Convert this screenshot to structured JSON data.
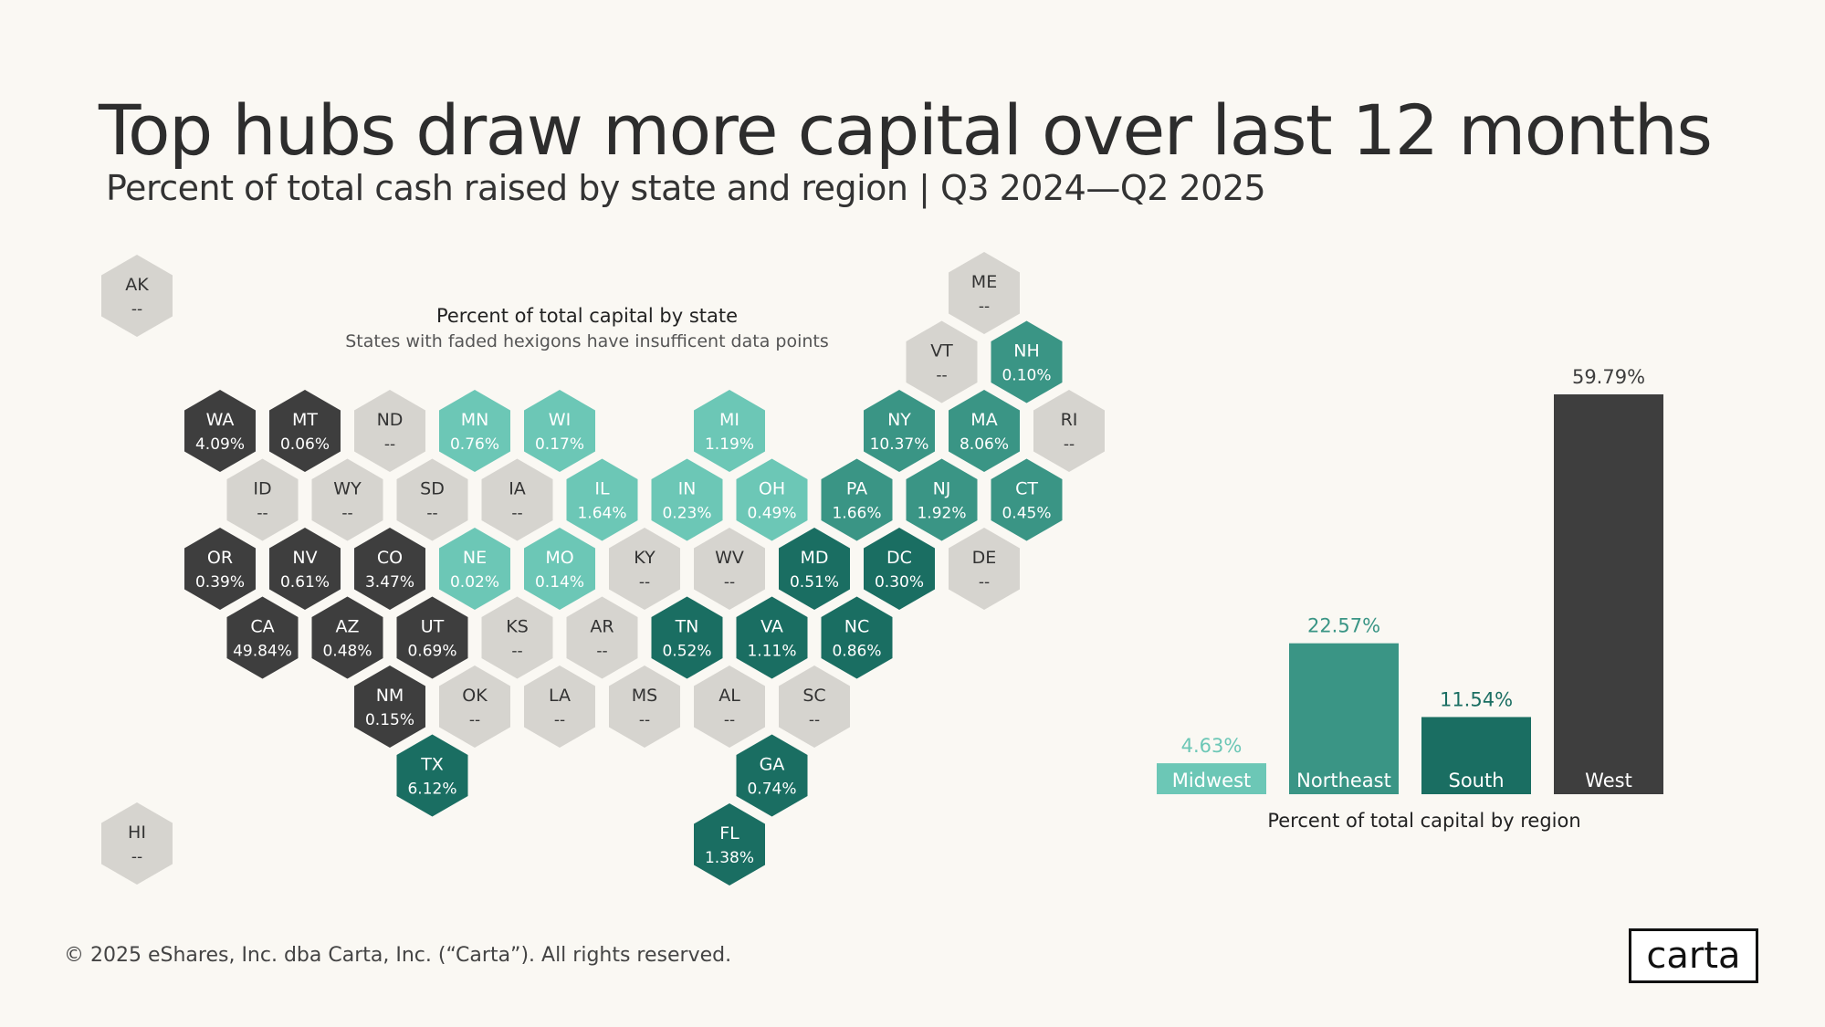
{
  "title": "Top hubs draw more capital over last 12 months",
  "subtitle": "Percent of total cash raised by state and region | Q3 2024—Q2 2025",
  "footer": "© 2025 eShares, Inc. dba Carta, Inc. (“Carta”). All rights reserved.",
  "logo": "carta",
  "colors": {
    "West": "#3e3e3e",
    "Midwest": "#6cc7b6",
    "Northeast": "#3a9585",
    "South": "#1a6e62",
    "insufficient": "#d6d4cf"
  },
  "chart_data": [
    {
      "type": "hexbin map",
      "title": "Percent of total capital by state",
      "subtitle": "States with faded hexigons have insufficent data points",
      "states": [
        {
          "state": "AK",
          "value": "--",
          "region": "insufficient"
        },
        {
          "state": "HI",
          "value": "--",
          "region": "insufficient"
        },
        {
          "state": "ME",
          "value": "--",
          "region": "insufficient"
        },
        {
          "state": "VT",
          "value": "--",
          "region": "insufficient"
        },
        {
          "state": "NH",
          "value": "0.10%",
          "region": "Northeast"
        },
        {
          "state": "WA",
          "value": "4.09%",
          "region": "West"
        },
        {
          "state": "MT",
          "value": "0.06%",
          "region": "West"
        },
        {
          "state": "ND",
          "value": "--",
          "region": "insufficient"
        },
        {
          "state": "MN",
          "value": "0.76%",
          "region": "Midwest"
        },
        {
          "state": "WI",
          "value": "0.17%",
          "region": "Midwest"
        },
        {
          "state": "MI",
          "value": "1.19%",
          "region": "Midwest"
        },
        {
          "state": "NY",
          "value": "10.37%",
          "region": "Northeast"
        },
        {
          "state": "MA",
          "value": "8.06%",
          "region": "Northeast"
        },
        {
          "state": "RI",
          "value": "--",
          "region": "insufficient"
        },
        {
          "state": "ID",
          "value": "--",
          "region": "insufficient"
        },
        {
          "state": "WY",
          "value": "--",
          "region": "insufficient"
        },
        {
          "state": "SD",
          "value": "--",
          "region": "insufficient"
        },
        {
          "state": "IA",
          "value": "--",
          "region": "insufficient"
        },
        {
          "state": "IL",
          "value": "1.64%",
          "region": "Midwest"
        },
        {
          "state": "IN",
          "value": "0.23%",
          "region": "Midwest"
        },
        {
          "state": "OH",
          "value": "0.49%",
          "region": "Midwest"
        },
        {
          "state": "PA",
          "value": "1.66%",
          "region": "Northeast"
        },
        {
          "state": "NJ",
          "value": "1.92%",
          "region": "Northeast"
        },
        {
          "state": "CT",
          "value": "0.45%",
          "region": "Northeast"
        },
        {
          "state": "OR",
          "value": "0.39%",
          "region": "West"
        },
        {
          "state": "NV",
          "value": "0.61%",
          "region": "West"
        },
        {
          "state": "CO",
          "value": "3.47%",
          "region": "West"
        },
        {
          "state": "NE",
          "value": "0.02%",
          "region": "Midwest"
        },
        {
          "state": "MO",
          "value": "0.14%",
          "region": "Midwest"
        },
        {
          "state": "KY",
          "value": "--",
          "region": "insufficient"
        },
        {
          "state": "WV",
          "value": "--",
          "region": "insufficient"
        },
        {
          "state": "MD",
          "value": "0.51%",
          "region": "South"
        },
        {
          "state": "DC",
          "value": "0.30%",
          "region": "South"
        },
        {
          "state": "DE",
          "value": "--",
          "region": "insufficient"
        },
        {
          "state": "CA",
          "value": "49.84%",
          "region": "West"
        },
        {
          "state": "AZ",
          "value": "0.48%",
          "region": "West"
        },
        {
          "state": "UT",
          "value": "0.69%",
          "region": "West"
        },
        {
          "state": "KS",
          "value": "--",
          "region": "insufficient"
        },
        {
          "state": "AR",
          "value": "--",
          "region": "insufficient"
        },
        {
          "state": "TN",
          "value": "0.52%",
          "region": "South"
        },
        {
          "state": "VA",
          "value": "1.11%",
          "region": "South"
        },
        {
          "state": "NC",
          "value": "0.86%",
          "region": "South"
        },
        {
          "state": "NM",
          "value": "0.15%",
          "region": "West"
        },
        {
          "state": "OK",
          "value": "--",
          "region": "insufficient"
        },
        {
          "state": "LA",
          "value": "--",
          "region": "insufficient"
        },
        {
          "state": "MS",
          "value": "--",
          "region": "insufficient"
        },
        {
          "state": "AL",
          "value": "--",
          "region": "insufficient"
        },
        {
          "state": "SC",
          "value": "--",
          "region": "insufficient"
        },
        {
          "state": "TX",
          "value": "6.12%",
          "region": "South"
        },
        {
          "state": "GA",
          "value": "0.74%",
          "region": "South"
        },
        {
          "state": "FL",
          "value": "1.38%",
          "region": "South"
        }
      ]
    },
    {
      "type": "bar",
      "title": "Percent of total capital by region",
      "categories": [
        "Midwest",
        "Northeast",
        "South",
        "West"
      ],
      "values": [
        4.63,
        22.57,
        11.54,
        59.79
      ],
      "value_labels": [
        "4.63%",
        "22.57%",
        "11.54%",
        "59.79%"
      ],
      "ylim": [
        0,
        59.79
      ]
    }
  ]
}
